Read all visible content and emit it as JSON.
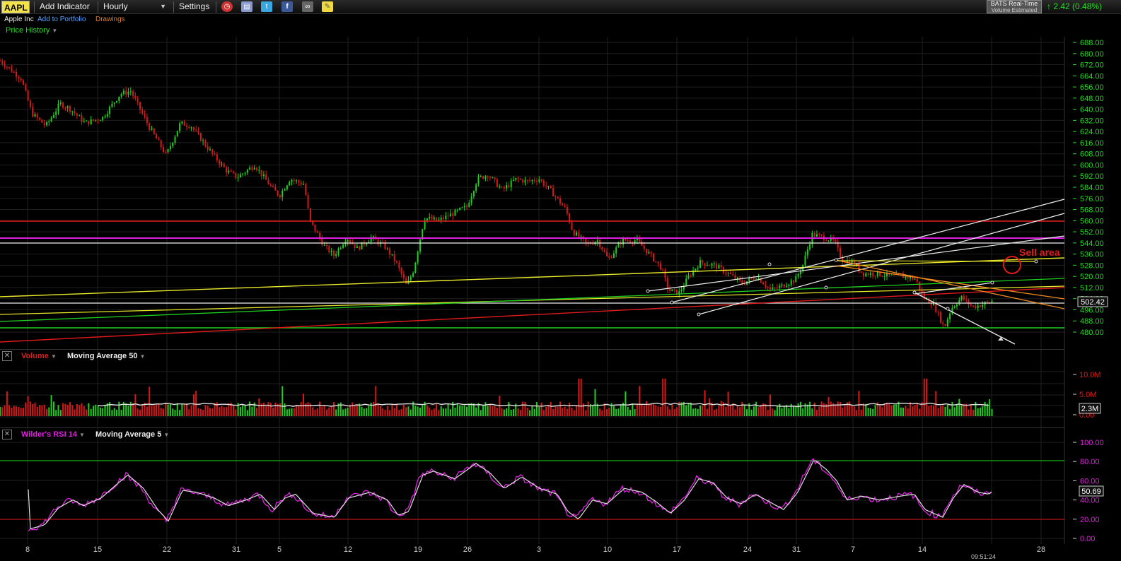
{
  "toolbar": {
    "symbol": "AAPL",
    "add_indicator": "Add Indicator",
    "interval": "Hourly",
    "settings": "Settings",
    "bats_title": "BATS Real-Time",
    "bats_sub": "Volume Estimated",
    "change": "2.42 (0.48%)",
    "icons": [
      "alarm-clock-icon",
      "stack-icon",
      "twitter-icon",
      "facebook-icon",
      "binoculars-icon",
      "note-icon"
    ]
  },
  "subheader": {
    "company": "Apple Inc",
    "add_to_portfolio": "Add to Portfolio",
    "drawings": "Drawings",
    "price_history": "Price History"
  },
  "price_panel": {
    "y_ticks": [
      "688.00",
      "680.00",
      "672.00",
      "664.00",
      "656.00",
      "648.00",
      "640.00",
      "632.00",
      "624.00",
      "616.00",
      "608.00",
      "600.00",
      "592.00",
      "584.00",
      "576.00",
      "568.00",
      "560.00",
      "552.00",
      "544.00",
      "536.00",
      "528.00",
      "520.00",
      "512.00",
      "504.00",
      "496.00",
      "488.00",
      "480.00"
    ],
    "last_price": "502.42",
    "annotation": "Sell area"
  },
  "volume_panel": {
    "label": "Volume",
    "ma_label": "Moving Average 50",
    "y_ticks": [
      "10.0M",
      "5.0M",
      "0.00"
    ],
    "current": "2.3M"
  },
  "rsi_panel": {
    "label": "Wilder's RSI 14",
    "ma_label": "Moving Average 5",
    "y_ticks": [
      "100.00",
      "80.00",
      "60.00",
      "40.00",
      "20.00",
      "0.00"
    ],
    "current": "50.69"
  },
  "x_axis": {
    "labels": [
      "8",
      "15",
      "22",
      "31",
      "5",
      "12",
      "19",
      "26",
      "3",
      "10",
      "17",
      "24",
      "31",
      "7",
      "14",
      "28"
    ],
    "time": "09:51:24"
  },
  "colors": {
    "up": "#1fcf1f",
    "down": "#d81818",
    "grid": "#1f1f1f",
    "rsi": "#e020e0",
    "ma": "#dddddd",
    "axis_green": "#22dd22"
  }
}
